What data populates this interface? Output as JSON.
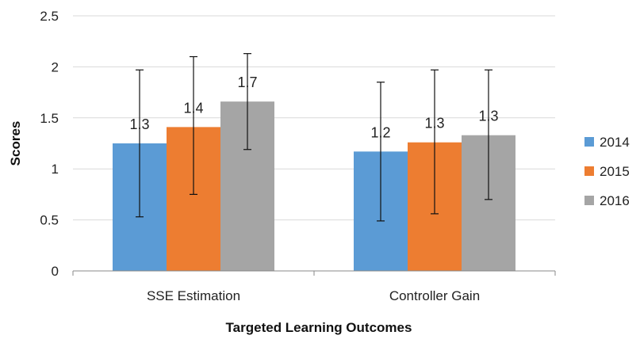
{
  "chart_data": {
    "type": "bar",
    "title": "",
    "xlabel": "Targeted Learning Outcomes",
    "ylabel": "Scores",
    "ylim": [
      0,
      2.5
    ],
    "yticks": [
      "0",
      "0.5",
      "1",
      "1.5",
      "2",
      "2.5"
    ],
    "grid": "horizontal",
    "legend_position": "right",
    "categories": [
      "SSE Estimation",
      "Controller Gain"
    ],
    "series": [
      {
        "name": "2014",
        "color": "#5B9BD5",
        "values": [
          1.25,
          1.17
        ],
        "labels": [
          "1.3",
          "1.2"
        ],
        "err_low": [
          0.53,
          0.49
        ],
        "err_high": [
          1.97,
          1.85
        ]
      },
      {
        "name": "2015",
        "color": "#ED7D31",
        "values": [
          1.41,
          1.26
        ],
        "labels": [
          "1.4",
          "1.3"
        ],
        "err_low": [
          0.75,
          0.56
        ],
        "err_high": [
          2.1,
          1.97
        ]
      },
      {
        "name": "2016",
        "color": "#A5A5A5",
        "values": [
          1.66,
          1.33
        ],
        "labels": [
          "1.7",
          "1.3"
        ],
        "err_low": [
          1.19,
          0.7
        ],
        "err_high": [
          2.13,
          1.97
        ]
      }
    ]
  }
}
